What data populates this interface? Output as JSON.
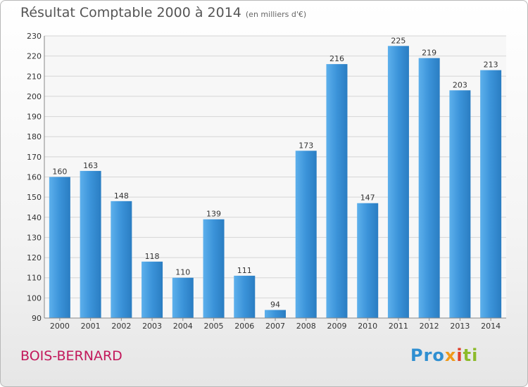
{
  "title": "Résultat Comptable 2000 à 2014",
  "subtitle": "(en milliers d'€)",
  "commune": "BOIS-BERNARD",
  "brand": {
    "text": "Proxiti",
    "colors": [
      "#2f8fd1",
      "#f09a1a",
      "#e0402b",
      "#8dbb2b"
    ]
  },
  "chart_data": {
    "type": "bar",
    "title": "Résultat Comptable 2000 à 2014",
    "subtitle": "(en milliers d'€)",
    "categories": [
      "2000",
      "2001",
      "2002",
      "2003",
      "2004",
      "2005",
      "2006",
      "2007",
      "2008",
      "2009",
      "2010",
      "2011",
      "2012",
      "2013",
      "2014"
    ],
    "values": [
      160,
      163,
      148,
      118,
      110,
      139,
      111,
      94,
      173,
      216,
      147,
      225,
      219,
      203,
      213
    ],
    "ylim": [
      90,
      230
    ],
    "yticks": [
      90,
      100,
      110,
      120,
      130,
      140,
      150,
      160,
      170,
      180,
      190,
      200,
      210,
      220,
      230
    ],
    "grid": true,
    "bar_color": "#3b93d9",
    "legend": "none"
  }
}
